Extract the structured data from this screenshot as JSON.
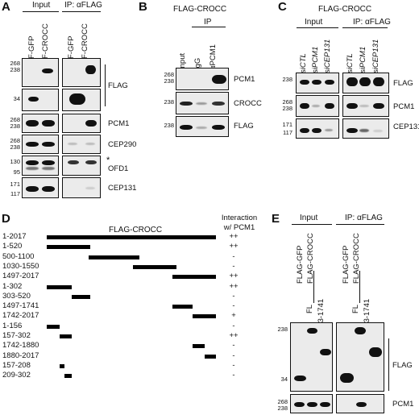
{
  "panels": {
    "A": {
      "letter": "A",
      "input_header": "Input",
      "ip_header": "IP: αFLAG",
      "lanes": [
        "F-GFP",
        "F-CROCC",
        "F-GFP",
        "F-CROCC"
      ],
      "blots": [
        {
          "label": "FLAG",
          "mw": [
            "268",
            "238"
          ]
        },
        {
          "label": "",
          "mw": [
            "34"
          ]
        },
        {
          "label": "PCM1",
          "mw": [
            "268",
            "238"
          ]
        },
        {
          "label": "CEP290",
          "mw": [
            "268",
            "238"
          ]
        },
        {
          "label": "OFD1",
          "mw": [
            "130",
            "95"
          ],
          "asterisk": "*"
        },
        {
          "label": "CEP131",
          "mw": [
            "171",
            "117"
          ]
        }
      ]
    },
    "B": {
      "letter": "B",
      "title": "FLAG-CROCC",
      "ip_header": "IP",
      "lanes": [
        "Input",
        "IgG",
        "αPCM1"
      ],
      "blots": [
        {
          "label": "PCM1",
          "mw": [
            "268",
            "238"
          ]
        },
        {
          "label": "CROCC",
          "mw": [
            "238"
          ]
        },
        {
          "label": "FLAG",
          "mw": [
            "238"
          ]
        }
      ]
    },
    "C": {
      "letter": "C",
      "title": "FLAG-CROCC",
      "input_header": "Input",
      "ip_header": "IP: αFLAG",
      "lanes": [
        "siCTL",
        "siPCM1",
        "siCEP131",
        "siCTL",
        "siPCM1",
        "siCEP131"
      ],
      "blots": [
        {
          "label": "FLAG",
          "mw": [
            "238"
          ]
        },
        {
          "label": "PCM1",
          "mw": [
            "268",
            "238"
          ]
        },
        {
          "label": "CEP131",
          "mw": [
            "171",
            "117"
          ]
        }
      ]
    },
    "D": {
      "letter": "D",
      "title": "FLAG-CROCC",
      "interaction_header": "Interaction w/ PCM1",
      "constructs": [
        {
          "label": "1-2017",
          "start": 1,
          "end": 2017,
          "interaction": "++"
        },
        {
          "label": "1-520",
          "start": 1,
          "end": 520,
          "interaction": "++"
        },
        {
          "label": "500-1100",
          "start": 500,
          "end": 1100,
          "interaction": "-"
        },
        {
          "label": "1030-1550",
          "start": 1030,
          "end": 1550,
          "interaction": "-"
        },
        {
          "label": "1497-2017",
          "start": 1497,
          "end": 2017,
          "interaction": "++"
        },
        {
          "label": "1-302",
          "start": 1,
          "end": 302,
          "interaction": "++"
        },
        {
          "label": "303-520",
          "start": 303,
          "end": 520,
          "interaction": "-"
        },
        {
          "label": "1497-1741",
          "start": 1497,
          "end": 1741,
          "interaction": "-"
        },
        {
          "label": "1742-2017",
          "start": 1742,
          "end": 2017,
          "interaction": "+"
        },
        {
          "label": "1-156",
          "start": 1,
          "end": 156,
          "interaction": "-"
        },
        {
          "label": "157-302",
          "start": 157,
          "end": 302,
          "interaction": "++"
        },
        {
          "label": "1742-1880",
          "start": 1742,
          "end": 1880,
          "interaction": "-"
        },
        {
          "label": "1880-2017",
          "start": 1880,
          "end": 2017,
          "interaction": "-"
        },
        {
          "label": "157-208",
          "start": 157,
          "end": 208,
          "interaction": "-"
        },
        {
          "label": "209-302",
          "start": 209,
          "end": 302,
          "interaction": "-"
        }
      ]
    },
    "E": {
      "letter": "E",
      "input_header": "Input",
      "ip_header": "IP: αFLAG",
      "lanes_top": [
        "FLAG-GFP",
        "FLAG-CROCC",
        "FLAG-GFP",
        "FLAG-CROCC"
      ],
      "sub_lanes": [
        "FL",
        "303-1741",
        "FL",
        "303-1741"
      ],
      "blots": [
        {
          "label": "FLAG",
          "mw": [
            "238",
            "34"
          ]
        },
        {
          "label": "PCM1",
          "mw": [
            "268",
            "238"
          ]
        }
      ]
    }
  }
}
